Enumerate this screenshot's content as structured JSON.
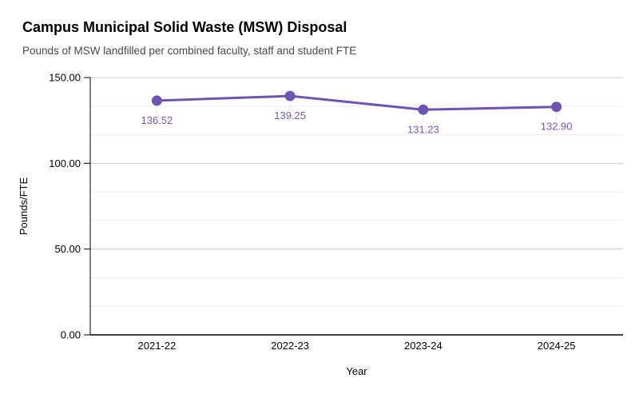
{
  "chart_data": {
    "type": "line",
    "title": "Campus Municipal Solid Waste (MSW) Disposal",
    "subtitle": "Pounds of MSW landfilled per combined faculty, staff and student FTE",
    "xlabel": "Year",
    "ylabel": "Pounds/FTE",
    "categories": [
      "2021-22",
      "2022-23",
      "2023-24",
      "2024-25"
    ],
    "values": [
      136.52,
      139.25,
      131.23,
      132.9
    ],
    "data_labels": [
      "136.52",
      "139.25",
      "131.23",
      "132.90"
    ],
    "ylim": [
      0,
      150
    ],
    "y_ticks": [
      {
        "value": 0,
        "label": "0.00"
      },
      {
        "value": 50,
        "label": "50.00"
      },
      {
        "value": 100,
        "label": "100.00"
      },
      {
        "value": 150,
        "label": "150.00"
      }
    ],
    "minor_gridlines_per_interval": 2,
    "grid": true,
    "legend": "none",
    "marker": "circle"
  },
  "colors": {
    "series": "#6e54b2",
    "data_label": "#7558b9",
    "major_gridline": "#cccccc",
    "minor_gridline": "#ededed",
    "leader_line": "#e2e2e2",
    "axis_line": "#000000",
    "tick_label": "#000000",
    "axis_title": "#000000",
    "background": "#ffffff"
  }
}
